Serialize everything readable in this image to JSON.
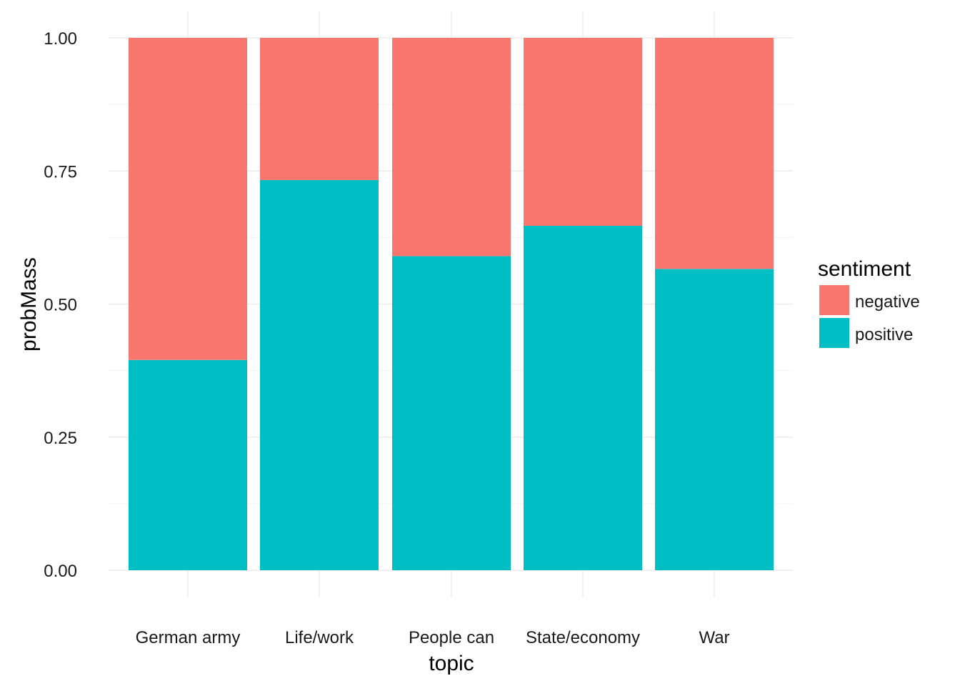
{
  "chart_data": {
    "type": "bar",
    "stacked": true,
    "xlabel": "topic",
    "ylabel": "probMass",
    "ylim": [
      0,
      1
    ],
    "yticks": [
      "0.00",
      "0.25",
      "0.50",
      "0.75",
      "1.00"
    ],
    "grid": true,
    "legend": {
      "title": "sentiment",
      "placement": "right"
    },
    "categories": [
      "German army",
      "Life/work",
      "People can",
      "State/economy",
      "War"
    ],
    "series": [
      {
        "name": "positive",
        "color": "#00BFC4",
        "values": [
          0.395,
          0.733,
          0.59,
          0.647,
          0.566
        ]
      },
      {
        "name": "negative",
        "color": "#F8766D",
        "values": [
          0.605,
          0.267,
          0.41,
          0.353,
          0.434
        ]
      }
    ],
    "legend_order": [
      "negative",
      "positive"
    ]
  }
}
